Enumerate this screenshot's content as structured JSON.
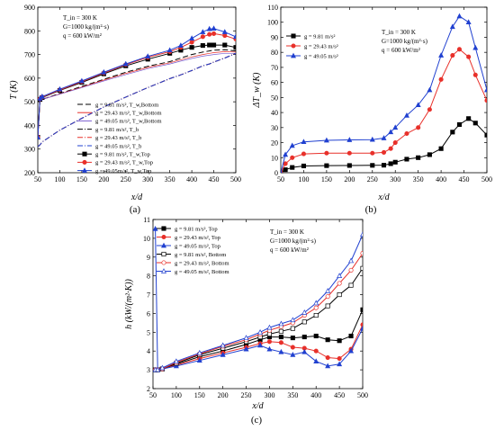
{
  "chart_data": [
    {
      "caption": "(a)",
      "type": "line",
      "xlabel": "x/d",
      "ylabel": "T (K)",
      "xlim": [
        50,
        500
      ],
      "ylim": [
        200,
        900
      ],
      "xticks": [
        50,
        100,
        150,
        200,
        250,
        300,
        350,
        400,
        450,
        500
      ],
      "yticks": [
        200,
        300,
        400,
        500,
        600,
        700,
        800,
        900
      ],
      "annotations": [
        "T_in = 300 K",
        "G=1000 kg/(m²·s)",
        "q = 600 kW/m²"
      ],
      "legend_position": "bottom-right",
      "x": [
        50,
        55,
        60,
        100,
        150,
        200,
        250,
        300,
        350,
        375,
        400,
        425,
        440,
        450,
        475,
        500
      ],
      "series": [
        {
          "name": "g = 9.81 m/s², T_w,Bottom",
          "color": "#000000",
          "dash": "6,3",
          "marker": "none",
          "values": [
            350,
            505,
            510,
            535,
            565,
            595,
            625,
            650,
            670,
            685,
            700,
            710,
            715,
            718,
            720,
            715
          ]
        },
        {
          "name": "g = 29.43 m/s², T_w,Bottom",
          "color": "#e8302a",
          "dash": "none",
          "marker": "none",
          "thin": true,
          "values": [
            350,
            505,
            510,
            533,
            562,
            592,
            620,
            645,
            665,
            678,
            690,
            700,
            705,
            708,
            712,
            710
          ]
        },
        {
          "name": "g = 49.05 m/s², T_w,Bottom",
          "color": "#7a5fd0",
          "dash": "none",
          "marker": "none",
          "thin": true,
          "values": [
            350,
            505,
            510,
            532,
            560,
            588,
            615,
            640,
            660,
            672,
            683,
            693,
            697,
            700,
            705,
            705
          ]
        },
        {
          "name": "g = 9.81 m/s², T_b",
          "color": "#000000",
          "dash": "6,2,1,2",
          "marker": "none",
          "values": [
            310,
            318,
            330,
            380,
            430,
            478,
            520,
            560,
            598,
            614,
            632,
            652,
            660,
            668,
            685,
            705
          ]
        },
        {
          "name": "g = 29.43 m/s², T_b",
          "color": "#e8302a",
          "dash": "6,2,1,2",
          "marker": "none",
          "values": [
            310,
            318,
            330,
            380,
            430,
            478,
            520,
            560,
            598,
            614,
            632,
            652,
            660,
            668,
            685,
            705
          ]
        },
        {
          "name": "g = 49.05 m/s², T_b",
          "color": "#2040d0",
          "dash": "6,2,1,2",
          "marker": "none",
          "values": [
            310,
            318,
            330,
            380,
            430,
            478,
            520,
            560,
            598,
            614,
            632,
            652,
            660,
            668,
            685,
            705
          ]
        },
        {
          "name": "g = 9.81 m/s², T_w,Top",
          "color": "#000000",
          "dash": "none",
          "marker": "square",
          "values": [
            350,
            510,
            518,
            548,
            582,
            618,
            652,
            680,
            705,
            718,
            730,
            738,
            740,
            740,
            740,
            730
          ]
        },
        {
          "name": "g = 29.43 m/s², T_w,Top",
          "color": "#e8302a",
          "dash": "none",
          "marker": "circle",
          "values": [
            350,
            512,
            520,
            550,
            585,
            622,
            657,
            688,
            712,
            730,
            752,
            775,
            785,
            788,
            780,
            765
          ]
        },
        {
          "name": "g = 49.05m/s², T_w,Top",
          "color": "#2040d0",
          "dash": "none",
          "marker": "triangle",
          "values": [
            350,
            514,
            522,
            553,
            588,
            625,
            660,
            692,
            718,
            738,
            768,
            795,
            808,
            810,
            795,
            775
          ]
        }
      ]
    },
    {
      "caption": "(b)",
      "type": "line",
      "xlabel": "x/d",
      "ylabel": "ΔT_w (K)",
      "xlim": [
        50,
        500
      ],
      "ylim": [
        0,
        110
      ],
      "xticks": [
        50,
        100,
        150,
        200,
        250,
        300,
        350,
        400,
        450,
        500
      ],
      "yticks": [
        0,
        10,
        20,
        30,
        40,
        50,
        60,
        70,
        80,
        90,
        100,
        110
      ],
      "annotations": [
        "T_in = 300 K",
        "G=1000 kg/(m²·s)",
        "q = 600 kW/m²"
      ],
      "legend_position": "top-left",
      "x": [
        50,
        60,
        75,
        100,
        150,
        200,
        250,
        275,
        290,
        300,
        325,
        350,
        375,
        400,
        425,
        440,
        460,
        475,
        500
      ],
      "series": [
        {
          "name": "g = 9.81 m/s²",
          "color": "#000000",
          "marker": "square",
          "values": [
            0,
            2,
            3.5,
            4.5,
            4.7,
            4.8,
            4.9,
            5,
            6,
            7,
            9,
            10,
            12,
            16,
            27,
            32,
            36,
            33,
            25
          ]
        },
        {
          "name": "g = 29.43 m/s²",
          "color": "#e8302a",
          "marker": "circle",
          "values": [
            0,
            6,
            10,
            12.5,
            13,
            13,
            13,
            13.5,
            16,
            20,
            26,
            30,
            42,
            62,
            78,
            82,
            77,
            65,
            48
          ]
        },
        {
          "name": "g = 49.05 m/s²",
          "color": "#2040d0",
          "marker": "triangle",
          "values": [
            0,
            12,
            18,
            20.5,
            21.5,
            21.8,
            22,
            23,
            27,
            30,
            38,
            45,
            55,
            78,
            97,
            104,
            100,
            83,
            55
          ]
        }
      ]
    },
    {
      "caption": "(c)",
      "type": "line",
      "xlabel": "x/d",
      "ylabel": "h (kW/(m²·K))",
      "xlim": [
        50,
        500
      ],
      "ylim": [
        2,
        11
      ],
      "xticks": [
        50,
        100,
        150,
        200,
        250,
        300,
        350,
        400,
        450,
        500
      ],
      "yticks": [
        2,
        3,
        4,
        5,
        6,
        7,
        8,
        9,
        10,
        11
      ],
      "annotations": [
        "T_in = 300 K",
        "G=1000 kg/(m²·s)",
        "q = 600 kW/m²"
      ],
      "legend_position": "top-left",
      "x": [
        55,
        60,
        70,
        100,
        150,
        200,
        250,
        280,
        300,
        325,
        350,
        375,
        400,
        425,
        450,
        475,
        500
      ],
      "series": [
        {
          "name": "g = 9.81 m/s², Top",
          "color": "#000000",
          "marker": "square-filled",
          "values": [
            3.0,
            3.0,
            3.05,
            3.3,
            3.7,
            4.0,
            4.35,
            4.6,
            4.75,
            4.75,
            4.7,
            4.75,
            4.8,
            4.6,
            4.55,
            4.8,
            6.2
          ]
        },
        {
          "name": "g = 29.43 m/s², Top",
          "color": "#e8302a",
          "marker": "circle-filled",
          "values": [
            3.0,
            3.0,
            3.05,
            3.25,
            3.6,
            3.9,
            4.2,
            4.4,
            4.5,
            4.45,
            4.2,
            4.15,
            4.0,
            3.65,
            3.6,
            4.1,
            5.4
          ]
        },
        {
          "name": "g = 49.05 m/s², Top",
          "color": "#2040d0",
          "marker": "triangle-filled",
          "values": [
            10.5,
            3.0,
            3.05,
            3.2,
            3.5,
            3.8,
            4.1,
            4.3,
            4.1,
            3.95,
            3.8,
            3.95,
            3.45,
            3.2,
            3.3,
            4.0,
            5.2
          ]
        },
        {
          "name": "g = 9.81 m/s², Bottom",
          "color": "#000000",
          "marker": "square-open",
          "values": [
            3.0,
            3.0,
            3.05,
            3.35,
            3.8,
            4.15,
            4.5,
            4.75,
            4.9,
            5.05,
            5.2,
            5.55,
            5.9,
            6.4,
            7.0,
            7.5,
            8.4
          ]
        },
        {
          "name": "g = 29.43 m/s², Bottom",
          "color": "#e8302a",
          "marker": "circle-open",
          "values": [
            3.0,
            3.0,
            3.05,
            3.4,
            3.85,
            4.25,
            4.6,
            4.9,
            5.1,
            5.3,
            5.5,
            5.9,
            6.3,
            6.9,
            7.6,
            8.3,
            9.2
          ]
        },
        {
          "name": "g = 49.05 m/s², Bottom",
          "color": "#2040d0",
          "marker": "triangle-open",
          "values": [
            3.0,
            3.0,
            3.1,
            3.45,
            3.9,
            4.3,
            4.7,
            5.0,
            5.25,
            5.45,
            5.65,
            6.05,
            6.55,
            7.2,
            8.0,
            8.8,
            10.2
          ]
        }
      ]
    }
  ]
}
